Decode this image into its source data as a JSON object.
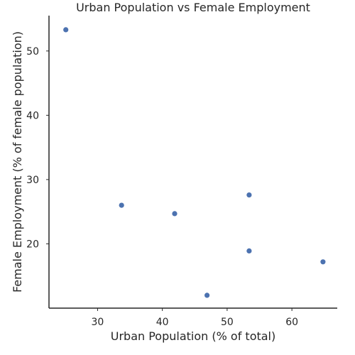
{
  "chart_data": {
    "type": "scatter",
    "title": "Urban Population vs Female Employment",
    "xlabel": "Urban Population (% of total)",
    "ylabel": "Female Employment (% of female population)",
    "xlim": [
      22.5,
      67
    ],
    "ylim": [
      10,
      55.5
    ],
    "xticks": [
      30,
      40,
      50,
      60
    ],
    "yticks": [
      20,
      30,
      40,
      50
    ],
    "grid": false,
    "marker_color": "#4c72b0",
    "points": [
      {
        "x": 25.1,
        "y": 53.3
      },
      {
        "x": 33.7,
        "y": 26.0
      },
      {
        "x": 41.9,
        "y": 24.7
      },
      {
        "x": 46.9,
        "y": 12.0
      },
      {
        "x": 53.4,
        "y": 27.6
      },
      {
        "x": 53.4,
        "y": 18.9
      },
      {
        "x": 64.8,
        "y": 17.2
      }
    ]
  }
}
